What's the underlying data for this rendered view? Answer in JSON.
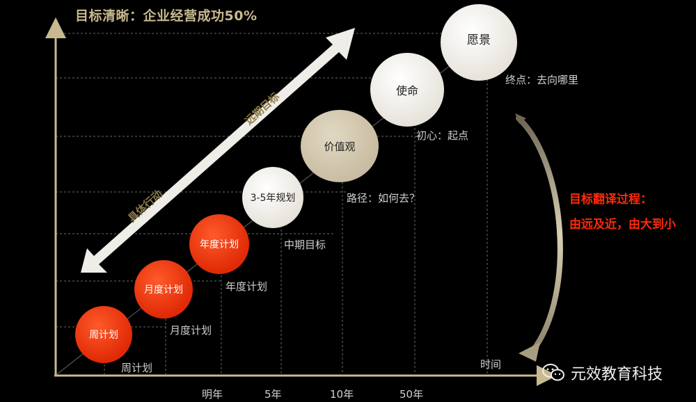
{
  "title": "目标清晰：企业经营成功50%",
  "x_axis_label": "时间",
  "x_ticks": [
    "明年",
    "5年",
    "10年",
    "50年"
  ],
  "arrow_labels": {
    "up": "远期目标",
    "down": "具体行动"
  },
  "circles": {
    "vision": "愿景",
    "mission": "使命",
    "values": "价值观",
    "plan_3_5": "3-5年规划",
    "year_plan": "年度计划",
    "month_plan": "月度计划",
    "week_plan": "周计划"
  },
  "notes": {
    "vision": "终点：去向哪里",
    "mission": "初心：起点",
    "values": "路径：如何去？",
    "plan_3_5": "中期目标",
    "year_plan": "年度计划",
    "month_plan": "月度计划",
    "week_plan": "周计划"
  },
  "translate_process": {
    "line1": "目标翻译过程：",
    "line2": "由远及近，由大到小"
  },
  "brand": "元效教育科技",
  "colors": {
    "red": "#e02a06",
    "gold": "#c9b98f",
    "beige": "#c7bba1"
  }
}
